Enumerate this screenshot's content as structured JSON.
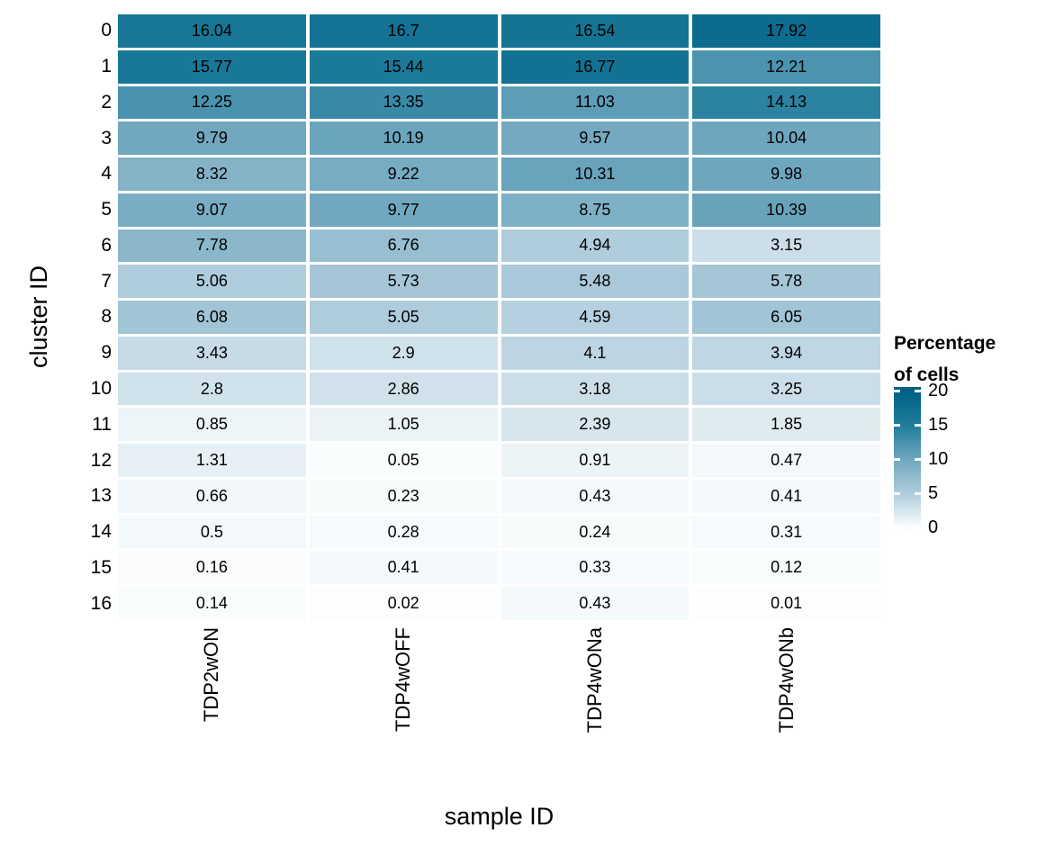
{
  "chart_data": {
    "type": "heatmap",
    "xlabel": "sample ID",
    "ylabel": "cluster ID",
    "columns": [
      "TDP2wON",
      "TDP4wOFF",
      "TDP4wONa",
      "TDP4wONb"
    ],
    "rows": [
      "0",
      "1",
      "2",
      "3",
      "4",
      "5",
      "6",
      "7",
      "8",
      "9",
      "10",
      "11",
      "12",
      "13",
      "14",
      "15",
      "16"
    ],
    "values": [
      [
        16.04,
        16.7,
        16.54,
        17.92
      ],
      [
        15.77,
        15.44,
        16.77,
        12.21
      ],
      [
        12.25,
        13.35,
        11.03,
        14.13
      ],
      [
        9.79,
        10.19,
        9.57,
        10.04
      ],
      [
        8.32,
        9.22,
        10.31,
        9.98
      ],
      [
        9.07,
        9.77,
        8.75,
        10.39
      ],
      [
        7.78,
        6.76,
        4.94,
        3.15
      ],
      [
        5.06,
        5.73,
        5.48,
        5.78
      ],
      [
        6.08,
        5.05,
        4.59,
        6.05
      ],
      [
        3.43,
        2.9,
        4.1,
        3.94
      ],
      [
        2.8,
        2.86,
        3.18,
        3.25
      ],
      [
        0.85,
        1.05,
        2.39,
        1.85
      ],
      [
        1.31,
        0.05,
        0.91,
        0.47
      ],
      [
        0.66,
        0.23,
        0.43,
        0.41
      ],
      [
        0.5,
        0.28,
        0.24,
        0.31
      ],
      [
        0.16,
        0.41,
        0.33,
        0.12
      ],
      [
        0.14,
        0.02,
        0.43,
        0.01
      ]
    ],
    "legend": {
      "title_line1": "Percentage",
      "title_line2": "of cells",
      "ticks": [
        20,
        15,
        10,
        5,
        0
      ]
    },
    "color_scale": {
      "domain": [
        0,
        5,
        10,
        15,
        20
      ],
      "colors": [
        "#fbfdfe",
        "#afccdc",
        "#6ea6be",
        "#1e7c9b",
        "#005f85"
      ]
    },
    "layout": {
      "grid": "white gaps between cells",
      "legend_position": "right",
      "x_tick_rotation": 90
    }
  }
}
